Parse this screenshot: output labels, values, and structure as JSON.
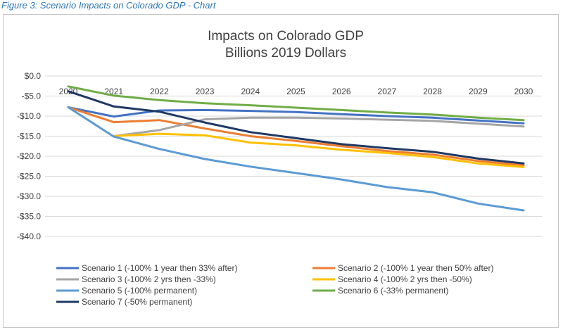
{
  "caption": "Figure 3: Scenario Impacts on Colorado GDP - Chart",
  "chart_data": {
    "type": "line",
    "title": "Impacts on Colorado GDP",
    "subtitle": "Billions 2019 Dollars",
    "xlabel": "",
    "ylabel": "",
    "x": [
      "2020",
      "2021",
      "2022",
      "2023",
      "2024",
      "2025",
      "2026",
      "2027",
      "2028",
      "2029",
      "2030"
    ],
    "ylim": [
      -40,
      0
    ],
    "yticks": [
      0,
      -5,
      -10,
      -15,
      -20,
      -25,
      -30,
      -35,
      -40
    ],
    "ytick_labels": [
      "$0.0",
      "-$5.0",
      "-$10.0",
      "-$15.0",
      "-$20.0",
      "-$25.0",
      "-$30.0",
      "-$35.0",
      "-$40.0"
    ],
    "grid": "horizontal",
    "legend_position": "bottom",
    "series": [
      {
        "name": "Scenario 1 (-100% 1 year then 33% after)",
        "color": "#4472c4",
        "values": [
          -7.8,
          -10.1,
          -8.6,
          -8.5,
          -8.7,
          -9.0,
          -9.5,
          -10.0,
          -10.4,
          -11.1,
          -11.8
        ]
      },
      {
        "name": "Scenario 2 (-100% 1 year then 50% after)",
        "color": "#ed7d31",
        "values": [
          -7.8,
          -11.5,
          -11.0,
          -13.1,
          -15.0,
          -16.2,
          -17.5,
          -18.7,
          -19.6,
          -21.2,
          -22.3
        ]
      },
      {
        "name": "Scenario 3 (-100% 2 yrs then -33%)",
        "color": "#a5a5a5",
        "values": [
          null,
          -15.0,
          -13.5,
          -10.8,
          -10.4,
          -10.4,
          -10.6,
          -10.9,
          -11.2,
          -11.9,
          -12.6
        ]
      },
      {
        "name": "Scenario 4 (-100% 2 yrs then -50%)",
        "color": "#ffc000",
        "values": [
          null,
          -15.0,
          -14.4,
          -14.8,
          -16.6,
          -17.3,
          -18.4,
          -19.2,
          -20.2,
          -21.8,
          -22.7
        ]
      },
      {
        "name": "Scenario 5 (-100% permanent)",
        "color": "#5b9bd5",
        "values": [
          -7.8,
          -15.1,
          -18.2,
          -20.7,
          -22.6,
          -24.2,
          -25.8,
          -27.7,
          -29.0,
          -31.8,
          -33.5
        ]
      },
      {
        "name": "Scenario 6 (-33% permanent)",
        "color": "#70ad47",
        "values": [
          -2.6,
          -4.9,
          -6.0,
          -6.8,
          -7.3,
          -7.9,
          -8.5,
          -9.1,
          -9.6,
          -10.4,
          -11.0
        ]
      },
      {
        "name": "Scenario 7 (-50% permanent)",
        "color": "#1f3864",
        "values": [
          -3.8,
          -7.6,
          -8.9,
          -11.6,
          -14.0,
          -15.5,
          -17.0,
          -18.0,
          -18.9,
          -20.6,
          -21.8
        ]
      }
    ]
  }
}
